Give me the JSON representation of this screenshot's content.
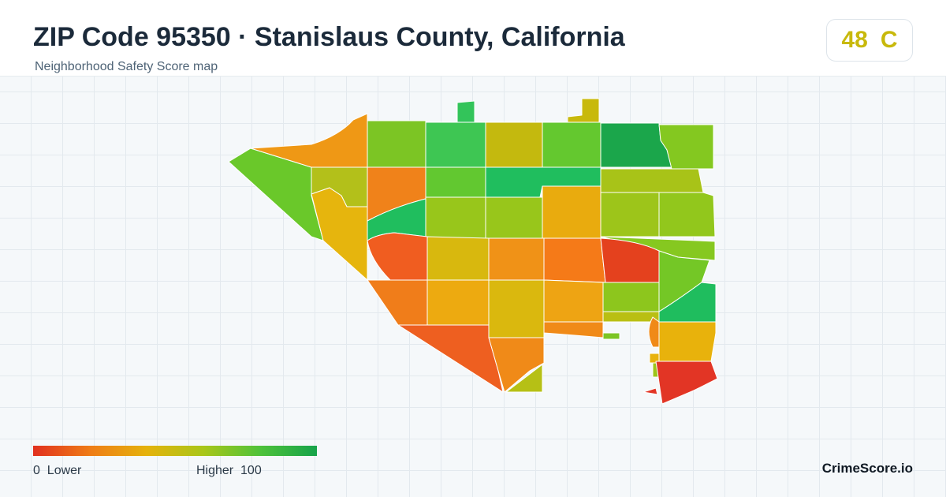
{
  "header": {
    "title": "ZIP Code 95350 · Stanislaus County, California",
    "subtitle": "Neighborhood Safety Score map"
  },
  "score_badge": {
    "score": "48",
    "grade": "C",
    "color": "#c8b90c"
  },
  "legend": {
    "min_label": "0",
    "low_label": "Lower",
    "high_label": "Higher",
    "max_label": "100",
    "gradient_colors": [
      "#e1301e",
      "#ef7c16",
      "#e5b20c",
      "#a9c619",
      "#4fc23a",
      "#16a34a"
    ]
  },
  "brand": {
    "name": "CrimeScore.io"
  },
  "map": {
    "stroke_color": "#ffffff"
  }
}
